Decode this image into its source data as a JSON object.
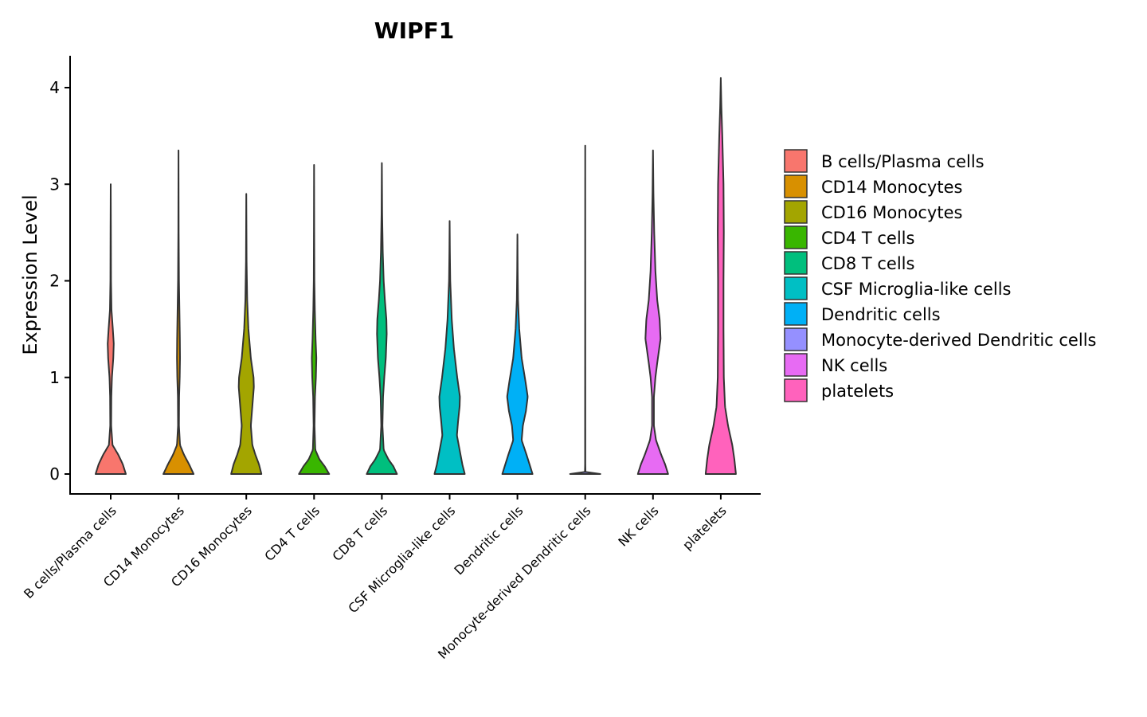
{
  "chart_data": {
    "type": "violin",
    "title": "WIPF1",
    "xlabel": "",
    "ylabel": "Expression Level",
    "ylim": [
      -0.2,
      4.33
    ],
    "yticks": [
      0,
      1,
      2,
      3,
      4
    ],
    "grid": false,
    "legend_position": "right",
    "series": [
      {
        "name": "B cells/Plasma cells",
        "color": "#F8766D",
        "max": 3.0,
        "profile": [
          [
            0,
            0.5
          ],
          [
            0.1,
            0.4
          ],
          [
            0.2,
            0.25
          ],
          [
            0.3,
            0.06
          ],
          [
            0.5,
            0.015
          ],
          [
            0.8,
            0.02
          ],
          [
            1.0,
            0.04
          ],
          [
            1.2,
            0.085
          ],
          [
            1.35,
            0.1
          ],
          [
            1.5,
            0.07
          ],
          [
            1.7,
            0.025
          ],
          [
            2.0,
            0.01
          ],
          [
            2.5,
            0.006
          ],
          [
            3.0,
            0
          ]
        ]
      },
      {
        "name": "CD14 Monocytes",
        "color": "#D89000",
        "max": 3.35,
        "profile": [
          [
            0,
            0.5
          ],
          [
            0.1,
            0.35
          ],
          [
            0.2,
            0.18
          ],
          [
            0.3,
            0.05
          ],
          [
            0.5,
            0.015
          ],
          [
            0.8,
            0.02
          ],
          [
            1.0,
            0.04
          ],
          [
            1.2,
            0.05
          ],
          [
            1.4,
            0.045
          ],
          [
            1.7,
            0.03
          ],
          [
            2.0,
            0.015
          ],
          [
            2.5,
            0.006
          ],
          [
            3.35,
            0
          ]
        ]
      },
      {
        "name": "CD16 Monocytes",
        "color": "#A3A500",
        "max": 2.9,
        "profile": [
          [
            0,
            0.5
          ],
          [
            0.1,
            0.42
          ],
          [
            0.2,
            0.3
          ],
          [
            0.3,
            0.2
          ],
          [
            0.5,
            0.15
          ],
          [
            0.7,
            0.2
          ],
          [
            0.9,
            0.25
          ],
          [
            1.0,
            0.24
          ],
          [
            1.2,
            0.15
          ],
          [
            1.5,
            0.07
          ],
          [
            1.8,
            0.03
          ],
          [
            2.2,
            0.01
          ],
          [
            2.9,
            0
          ]
        ]
      },
      {
        "name": "CD4 T cells",
        "color": "#39B600",
        "max": 3.2,
        "profile": [
          [
            0,
            0.5
          ],
          [
            0.08,
            0.35
          ],
          [
            0.15,
            0.18
          ],
          [
            0.25,
            0.04
          ],
          [
            0.5,
            0.015
          ],
          [
            0.8,
            0.03
          ],
          [
            1.0,
            0.06
          ],
          [
            1.2,
            0.075
          ],
          [
            1.4,
            0.05
          ],
          [
            1.7,
            0.025
          ],
          [
            2.0,
            0.01
          ],
          [
            2.5,
            0.005
          ],
          [
            3.2,
            0
          ]
        ]
      },
      {
        "name": "CD8 T cells",
        "color": "#00BF7D",
        "max": 3.22,
        "profile": [
          [
            0,
            0.5
          ],
          [
            0.08,
            0.38
          ],
          [
            0.15,
            0.22
          ],
          [
            0.25,
            0.06
          ],
          [
            0.5,
            0.02
          ],
          [
            0.8,
            0.04
          ],
          [
            1.0,
            0.08
          ],
          [
            1.2,
            0.13
          ],
          [
            1.45,
            0.16
          ],
          [
            1.6,
            0.15
          ],
          [
            1.8,
            0.1
          ],
          [
            2.0,
            0.06
          ],
          [
            2.3,
            0.03
          ],
          [
            2.7,
            0.01
          ],
          [
            3.22,
            0
          ]
        ]
      },
      {
        "name": "CSF Microglia-like cells",
        "color": "#00BFC4",
        "max": 2.62,
        "profile": [
          [
            0,
            0.5
          ],
          [
            0.1,
            0.42
          ],
          [
            0.2,
            0.36
          ],
          [
            0.4,
            0.24
          ],
          [
            0.55,
            0.28
          ],
          [
            0.7,
            0.33
          ],
          [
            0.8,
            0.34
          ],
          [
            1.0,
            0.25
          ],
          [
            1.3,
            0.14
          ],
          [
            1.6,
            0.07
          ],
          [
            2.0,
            0.02
          ],
          [
            2.3,
            0.008
          ],
          [
            2.62,
            0
          ]
        ]
      },
      {
        "name": "Dendritic cells",
        "color": "#00B0F6",
        "max": 2.48,
        "profile": [
          [
            0,
            0.5
          ],
          [
            0.1,
            0.4
          ],
          [
            0.2,
            0.3
          ],
          [
            0.35,
            0.14
          ],
          [
            0.5,
            0.18
          ],
          [
            0.65,
            0.28
          ],
          [
            0.8,
            0.34
          ],
          [
            0.95,
            0.27
          ],
          [
            1.2,
            0.14
          ],
          [
            1.5,
            0.06
          ],
          [
            1.8,
            0.02
          ],
          [
            2.1,
            0.008
          ],
          [
            2.48,
            0
          ]
        ]
      },
      {
        "name": "Monocyte-derived Dendritic cells",
        "color": "#9590FF",
        "max": 3.4,
        "profile": [
          [
            0,
            0.5
          ],
          [
            0.01,
            0.01
          ],
          [
            0.1,
            0.004
          ],
          [
            3.4,
            0
          ]
        ]
      },
      {
        "name": "NK cells",
        "color": "#E76BF3",
        "max": 3.35,
        "profile": [
          [
            0,
            0.5
          ],
          [
            0.1,
            0.4
          ],
          [
            0.2,
            0.27
          ],
          [
            0.35,
            0.1
          ],
          [
            0.5,
            0.03
          ],
          [
            0.8,
            0.03
          ],
          [
            1.0,
            0.08
          ],
          [
            1.15,
            0.14
          ],
          [
            1.4,
            0.25
          ],
          [
            1.6,
            0.22
          ],
          [
            1.8,
            0.14
          ],
          [
            2.1,
            0.08
          ],
          [
            2.5,
            0.04
          ],
          [
            2.9,
            0.015
          ],
          [
            3.35,
            0
          ]
        ]
      },
      {
        "name": "platelets",
        "color": "#FF62BC",
        "max": 4.1,
        "profile": [
          [
            0,
            0.5
          ],
          [
            0.15,
            0.45
          ],
          [
            0.3,
            0.38
          ],
          [
            0.5,
            0.24
          ],
          [
            0.7,
            0.14
          ],
          [
            1.0,
            0.1
          ],
          [
            1.5,
            0.09
          ],
          [
            2.0,
            0.09
          ],
          [
            2.5,
            0.1
          ],
          [
            3.0,
            0.09
          ],
          [
            3.5,
            0.05
          ],
          [
            3.8,
            0.02
          ],
          [
            4.1,
            0
          ]
        ]
      }
    ]
  }
}
